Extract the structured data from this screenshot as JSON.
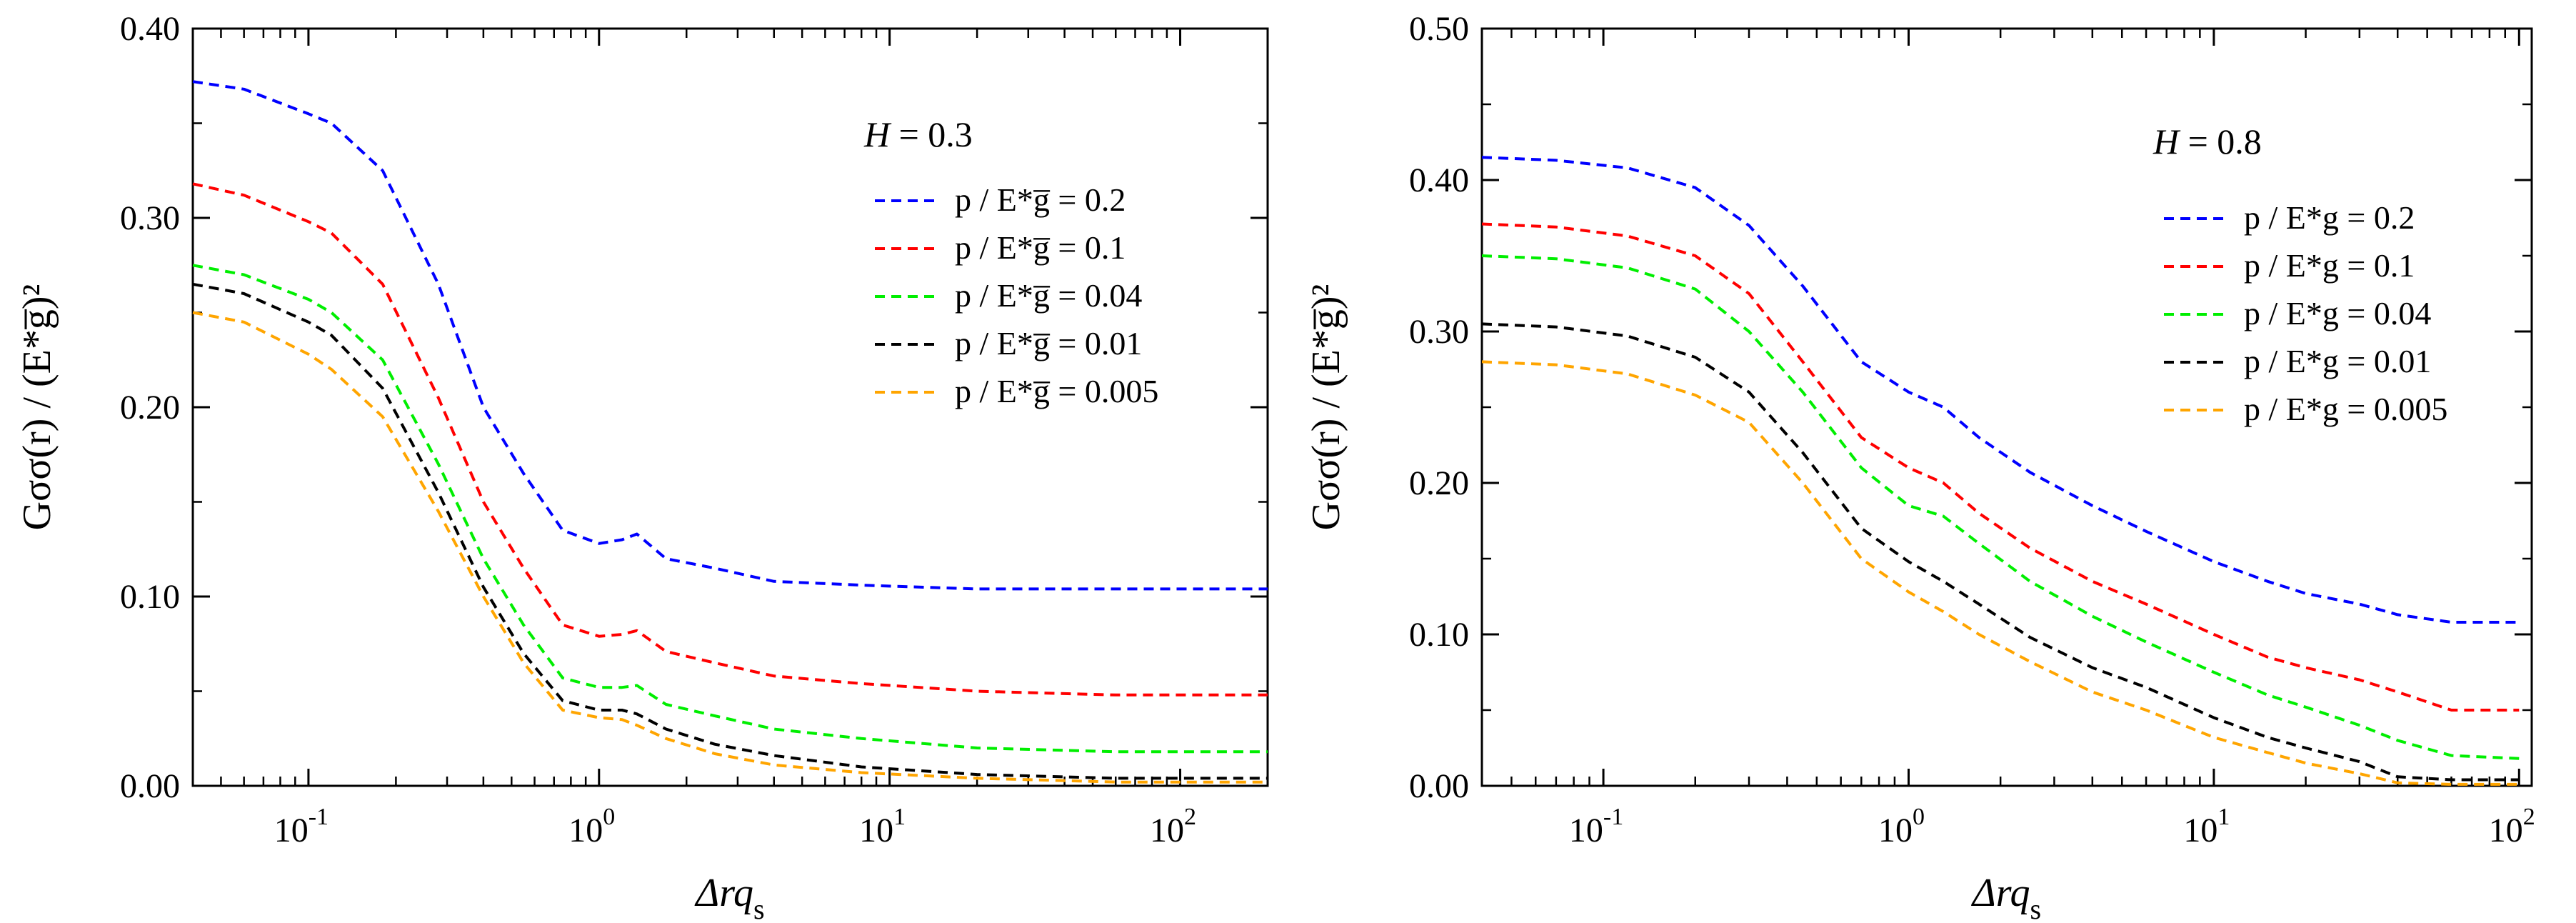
{
  "chart_data": [
    {
      "type": "line",
      "annotation": "H = 0.3",
      "xlabel_main": "Δrq",
      "xlabel_sub": "s",
      "ylabel": "Gσσ(r) / (E*g̅)²",
      "xscale": "log",
      "xlim": [
        0.04,
        200
      ],
      "ylim": [
        0,
        0.4
      ],
      "yticks": [
        "0.00",
        "0.10",
        "0.20",
        "0.30",
        "0.40"
      ],
      "xticks": [
        {
          "base": "10",
          "exp": "-1"
        },
        {
          "base": "10",
          "exp": "0"
        },
        {
          "base": "10",
          "exp": "1"
        },
        {
          "base": "10",
          "exp": "2"
        }
      ],
      "x": [
        0.04,
        0.06,
        0.1,
        0.12,
        0.18,
        0.28,
        0.4,
        0.55,
        0.75,
        1.0,
        1.2,
        1.35,
        1.7,
        2.5,
        4,
        8,
        20,
        60,
        200
      ],
      "series": [
        {
          "name": "p / E*g̅ = 0.2",
          "color": "#0000ff",
          "values": [
            0.372,
            0.368,
            0.355,
            0.35,
            0.325,
            0.265,
            0.2,
            0.165,
            0.135,
            0.128,
            0.13,
            0.133,
            0.12,
            0.115,
            0.108,
            0.106,
            0.104,
            0.104,
            0.104
          ]
        },
        {
          "name": "p / E*g̅ = 0.1",
          "color": "#ff0000",
          "values": [
            0.318,
            0.312,
            0.298,
            0.292,
            0.265,
            0.205,
            0.15,
            0.115,
            0.085,
            0.079,
            0.08,
            0.082,
            0.071,
            0.065,
            0.058,
            0.054,
            0.05,
            0.048,
            0.048
          ]
        },
        {
          "name": "p / E*g̅ = 0.04",
          "color": "#00ee00",
          "values": [
            0.275,
            0.27,
            0.257,
            0.25,
            0.225,
            0.17,
            0.12,
            0.085,
            0.057,
            0.052,
            0.052,
            0.053,
            0.043,
            0.037,
            0.03,
            0.025,
            0.02,
            0.018,
            0.018
          ]
        },
        {
          "name": "p / E*g̅ = 0.01",
          "color": "#000000",
          "values": [
            0.265,
            0.26,
            0.245,
            0.238,
            0.21,
            0.155,
            0.105,
            0.07,
            0.045,
            0.04,
            0.04,
            0.038,
            0.03,
            0.022,
            0.016,
            0.01,
            0.006,
            0.004,
            0.004
          ]
        },
        {
          "name": "p / E*g̅ = 0.005",
          "color": "#ffa500",
          "values": [
            0.25,
            0.245,
            0.228,
            0.22,
            0.195,
            0.145,
            0.1,
            0.065,
            0.04,
            0.036,
            0.035,
            0.032,
            0.025,
            0.017,
            0.011,
            0.007,
            0.004,
            0.002,
            0.002
          ]
        }
      ]
    },
    {
      "type": "line",
      "annotation": "H = 0.8",
      "xlabel_main": "Δrq",
      "xlabel_sub": "s",
      "ylabel": "Gσσ(r) / (E*g̅)²",
      "xscale": "log",
      "xlim": [
        0.04,
        110
      ],
      "ylim": [
        0,
        0.5
      ],
      "yticks": [
        "0.00",
        "0.10",
        "0.20",
        "0.30",
        "0.40",
        "0.50"
      ],
      "xticks": [
        {
          "base": "10",
          "exp": "-1"
        },
        {
          "base": "10",
          "exp": "0"
        },
        {
          "base": "10",
          "exp": "1"
        },
        {
          "base": "10",
          "exp": "2"
        }
      ],
      "x": [
        0.04,
        0.07,
        0.12,
        0.2,
        0.3,
        0.45,
        0.7,
        1.0,
        1.3,
        1.7,
        2.5,
        4,
        6,
        10,
        15,
        20,
        30,
        40,
        60,
        100
      ],
      "series": [
        {
          "name": "p / E*g = 0.2",
          "color": "#0000ff",
          "values": [
            0.415,
            0.413,
            0.408,
            0.395,
            0.37,
            0.33,
            0.28,
            0.26,
            0.25,
            0.23,
            0.207,
            0.185,
            0.168,
            0.148,
            0.135,
            0.127,
            0.12,
            0.113,
            0.108,
            0.108
          ]
        },
        {
          "name": "p / E*g = 0.1",
          "color": "#ff0000",
          "values": [
            0.371,
            0.369,
            0.363,
            0.35,
            0.325,
            0.28,
            0.23,
            0.21,
            0.2,
            0.18,
            0.157,
            0.135,
            0.12,
            0.1,
            0.085,
            0.078,
            0.07,
            0.062,
            0.05,
            0.05
          ]
        },
        {
          "name": "p / E*g = 0.04",
          "color": "#00ee00",
          "values": [
            0.35,
            0.348,
            0.342,
            0.328,
            0.3,
            0.26,
            0.21,
            0.185,
            0.178,
            0.16,
            0.135,
            0.112,
            0.095,
            0.075,
            0.06,
            0.052,
            0.04,
            0.03,
            0.02,
            0.018
          ]
        },
        {
          "name": "p / E*g = 0.01",
          "color": "#000000",
          "values": [
            0.305,
            0.303,
            0.297,
            0.283,
            0.26,
            0.22,
            0.17,
            0.148,
            0.135,
            0.12,
            0.098,
            0.078,
            0.065,
            0.045,
            0.032,
            0.025,
            0.016,
            0.006,
            0.004,
            0.004
          ]
        },
        {
          "name": "p / E*g = 0.005",
          "color": "#ffa500",
          "values": [
            0.28,
            0.278,
            0.272,
            0.258,
            0.24,
            0.2,
            0.15,
            0.128,
            0.115,
            0.1,
            0.082,
            0.062,
            0.05,
            0.032,
            0.022,
            0.015,
            0.008,
            0.002,
            0.001,
            0.001
          ]
        }
      ]
    }
  ]
}
